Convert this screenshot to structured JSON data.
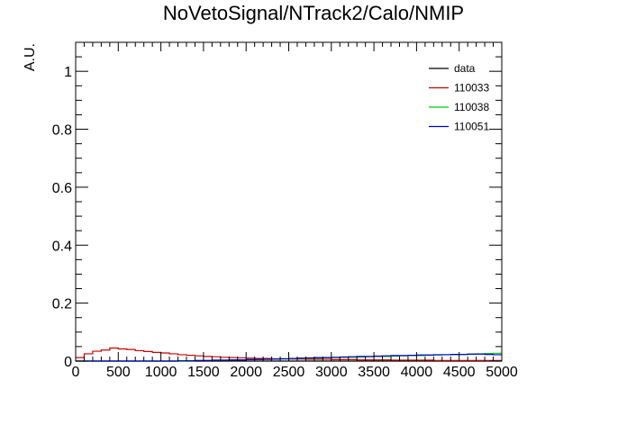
{
  "chart_data": {
    "type": "histogram-step",
    "title": "NoVetoSignal/NTrack2/Calo/NMIP",
    "xlabel": "",
    "ylabel": "A.U.",
    "xlim": [
      0,
      5000
    ],
    "ylim": [
      0,
      1.1
    ],
    "grid": false,
    "legend_position": "top-right",
    "x_ticks": [
      0,
      500,
      1000,
      1500,
      2000,
      2500,
      3000,
      3500,
      4000,
      4500,
      5000
    ],
    "y_ticks": [
      0,
      0.2,
      0.4,
      0.6,
      0.8,
      1
    ],
    "y_tick_labels": [
      "0",
      "0.2",
      "0.4",
      "0.6",
      "0.8",
      "1"
    ],
    "x_tick_labels": [
      "0",
      "500",
      "1000",
      "1500",
      "2000",
      "2500",
      "3000",
      "3500",
      "4000",
      "4500",
      "5000"
    ],
    "bin_width": 100,
    "series": [
      {
        "name": "data",
        "color": "#000000",
        "values": [
          0,
          0,
          0,
          0,
          0,
          0,
          0,
          0,
          0,
          0,
          0,
          0,
          0,
          0,
          0,
          0,
          0,
          0,
          0,
          0,
          0,
          0,
          0,
          0,
          0,
          0,
          0,
          0,
          0,
          0,
          0,
          0,
          0,
          0,
          0,
          0,
          0,
          0,
          0,
          0,
          0,
          0,
          0,
          0,
          0,
          0,
          0,
          0,
          0,
          0
        ]
      },
      {
        "name": "110033",
        "color": "#cc0000",
        "values": [
          0.012,
          0.025,
          0.034,
          0.038,
          0.045,
          0.042,
          0.04,
          0.036,
          0.033,
          0.03,
          0.028,
          0.025,
          0.022,
          0.02,
          0.018,
          0.016,
          0.015,
          0.013,
          0.012,
          0.011,
          0.01,
          0.009,
          0.009,
          0.008,
          0.008,
          0.007,
          0.007,
          0.006,
          0.006,
          0.006,
          0.005,
          0.005,
          0.005,
          0.004,
          0.004,
          0.004,
          0.004,
          0.003,
          0.003,
          0.003,
          0.003,
          0.003,
          0.002,
          0.002,
          0.002,
          0.002,
          0.002,
          0.002,
          0.002,
          0.002
        ]
      },
      {
        "name": "110038",
        "color": "#00cc00",
        "values": [
          0,
          0,
          0,
          0,
          0,
          0,
          0,
          0,
          0,
          0,
          0,
          0,
          0,
          0.001,
          0.002,
          0.002,
          0.003,
          0.003,
          0.004,
          0.004,
          0.005,
          0.005,
          0.006,
          0.007,
          0.007,
          0.008,
          0.009,
          0.01,
          0.01,
          0.011,
          0.012,
          0.013,
          0.013,
          0.014,
          0.015,
          0.016,
          0.016,
          0.017,
          0.018,
          0.019,
          0.019,
          0.02,
          0.021,
          0.022,
          0.022,
          0.023,
          0.024,
          0.025,
          0.026,
          0.027
        ]
      },
      {
        "name": "110051",
        "color": "#0000cc",
        "values": [
          0,
          0,
          0,
          0,
          0,
          0,
          0,
          0,
          0,
          0,
          0,
          0,
          0.001,
          0.001,
          0.002,
          0.002,
          0.003,
          0.003,
          0.004,
          0.004,
          0.005,
          0.006,
          0.006,
          0.007,
          0.008,
          0.009,
          0.01,
          0.011,
          0.012,
          0.012,
          0.013,
          0.014,
          0.015,
          0.016,
          0.016,
          0.017,
          0.018,
          0.019,
          0.019,
          0.02,
          0.021,
          0.021,
          0.022,
          0.022,
          0.023,
          0.023,
          0.024,
          0.024,
          0.023,
          0.022
        ]
      }
    ]
  }
}
